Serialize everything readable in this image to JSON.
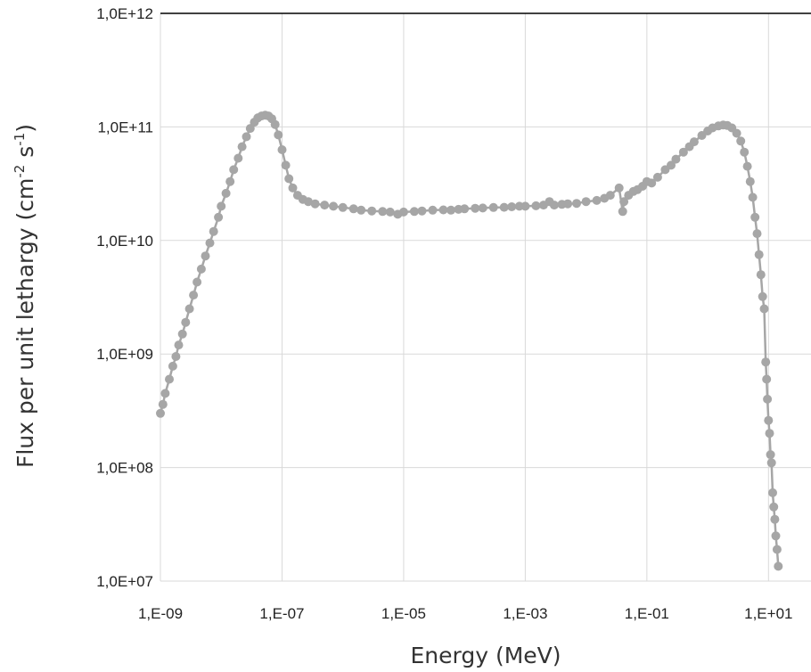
{
  "chart_data": {
    "type": "scatter",
    "title": "",
    "xlabel": "Energy (MeV)",
    "ylabel": {
      "text_before": "Flux per unit lethargy (cm",
      "sup1": "-2",
      "text_mid": " s",
      "sup2": "-1",
      "text_after": ")"
    },
    "x_scale": "log",
    "y_scale": "log",
    "xlim": [
      1e-09,
      50
    ],
    "ylim": [
      10000000.0,
      1000000000000.0
    ],
    "x_ticks": [
      {
        "value": 1e-09,
        "label": "1,E-09"
      },
      {
        "value": 1e-07,
        "label": "1,E-07"
      },
      {
        "value": 1e-05,
        "label": "1,E-05"
      },
      {
        "value": 0.001,
        "label": "1,E-03"
      },
      {
        "value": 0.1,
        "label": "1,E-01"
      },
      {
        "value": 10,
        "label": "1,E+01"
      }
    ],
    "y_ticks": [
      {
        "value": 10000000.0,
        "label": "1,0E+07"
      },
      {
        "value": 100000000.0,
        "label": "1,0E+08"
      },
      {
        "value": 1000000000.0,
        "label": "1,0E+09"
      },
      {
        "value": 10000000000.0,
        "label": "1,0E+10"
      },
      {
        "value": 100000000000.0,
        "label": "1,0E+11"
      },
      {
        "value": 1000000000000.0,
        "label": "1,0E+12"
      }
    ],
    "grid": true,
    "legend": "none",
    "series": [
      {
        "color": "#a6a6a6",
        "points": [
          [
            1e-09,
            300000000.0
          ],
          [
            1.1e-09,
            360000000.0
          ],
          [
            1.2e-09,
            450000000.0
          ],
          [
            1.4e-09,
            600000000.0
          ],
          [
            1.6e-09,
            780000000.0
          ],
          [
            1.8e-09,
            950000000.0
          ],
          [
            2e-09,
            1200000000.0
          ],
          [
            2.3e-09,
            1500000000.0
          ],
          [
            2.6e-09,
            1900000000.0
          ],
          [
            3e-09,
            2500000000.0
          ],
          [
            3.5e-09,
            3300000000.0
          ],
          [
            4e-09,
            4300000000.0
          ],
          [
            4.7e-09,
            5600000000.0
          ],
          [
            5.5e-09,
            7300000000.0
          ],
          [
            6.5e-09,
            9500000000.0
          ],
          [
            7.5e-09,
            12000000000.0
          ],
          [
            9e-09,
            16000000000.0
          ],
          [
            1e-08,
            20000000000.0
          ],
          [
            1.2e-08,
            26000000000.0
          ],
          [
            1.4e-08,
            33000000000.0
          ],
          [
            1.6e-08,
            42000000000.0
          ],
          [
            1.9e-08,
            53000000000.0
          ],
          [
            2.2e-08,
            67000000000.0
          ],
          [
            2.6e-08,
            82000000000.0
          ],
          [
            3e-08,
            97000000000.0
          ],
          [
            3.5e-08,
            110000000000.0
          ],
          [
            4e-08,
            120000000000.0
          ],
          [
            4.6e-08,
            125000000000.0
          ],
          [
            5.3e-08,
            127000000000.0
          ],
          [
            6e-08,
            125000000000.0
          ],
          [
            6.8e-08,
            118000000000.0
          ],
          [
            7.7e-08,
            105000000000.0
          ],
          [
            8.7e-08,
            85000000000.0
          ],
          [
            1e-07,
            63000000000.0
          ],
          [
            1.15e-07,
            46000000000.0
          ],
          [
            1.3e-07,
            35000000000.0
          ],
          [
            1.5e-07,
            29000000000.0
          ],
          [
            1.8e-07,
            25000000000.0
          ],
          [
            2.2e-07,
            23000000000.0
          ],
          [
            2.7e-07,
            22000000000.0
          ],
          [
            3.5e-07,
            21000000000.0
          ],
          [
            5e-07,
            20500000000.0
          ],
          [
            7e-07,
            20000000000.0
          ],
          [
            1e-06,
            19500000000.0
          ],
          [
            1.5e-06,
            19000000000.0
          ],
          [
            2e-06,
            18500000000.0
          ],
          [
            3e-06,
            18200000000.0
          ],
          [
            4.5e-06,
            18000000000.0
          ],
          [
            6e-06,
            17800000000.0
          ],
          [
            8e-06,
            17000000000.0
          ],
          [
            1e-05,
            17800000000.0
          ],
          [
            1.5e-05,
            18000000000.0
          ],
          [
            2e-05,
            18200000000.0
          ],
          [
            3e-05,
            18500000000.0
          ],
          [
            4.5e-05,
            18600000000.0
          ],
          [
            6e-05,
            18500000000.0
          ],
          [
            8e-05,
            18800000000.0
          ],
          [
            0.0001,
            19000000000.0
          ],
          [
            0.00015,
            19200000000.0
          ],
          [
            0.0002,
            19300000000.0
          ],
          [
            0.0003,
            19500000000.0
          ],
          [
            0.00045,
            19600000000.0
          ],
          [
            0.0006,
            19800000000.0
          ],
          [
            0.0008,
            20000000000.0
          ],
          [
            0.001,
            20000000000.0
          ],
          [
            0.0015,
            20200000000.0
          ],
          [
            0.002,
            20500000000.0
          ],
          [
            0.0025,
            22000000000.0
          ],
          [
            0.003,
            20500000000.0
          ],
          [
            0.004,
            20800000000.0
          ],
          [
            0.005,
            21000000000.0
          ],
          [
            0.007,
            21200000000.0
          ],
          [
            0.01,
            22000000000.0
          ],
          [
            0.015,
            22500000000.0
          ],
          [
            0.02,
            23500000000.0
          ],
          [
            0.025,
            25000000000.0
          ],
          [
            0.035,
            29000000000.0
          ],
          [
            0.04,
            18000000000.0
          ],
          [
            0.042,
            22000000000.0
          ],
          [
            0.05,
            25000000000.0
          ],
          [
            0.06,
            27000000000.0
          ],
          [
            0.07,
            28000000000.0
          ],
          [
            0.085,
            30000000000.0
          ],
          [
            0.1,
            33000000000.0
          ],
          [
            0.12,
            32000000000.0
          ],
          [
            0.15,
            36000000000.0
          ],
          [
            0.2,
            42000000000.0
          ],
          [
            0.25,
            46000000000.0
          ],
          [
            0.3,
            52000000000.0
          ],
          [
            0.4,
            60000000000.0
          ],
          [
            0.5,
            67000000000.0
          ],
          [
            0.6,
            74000000000.0
          ],
          [
            0.8,
            84000000000.0
          ],
          [
            1.0,
            92000000000.0
          ],
          [
            1.2,
            98000000000.0
          ],
          [
            1.5,
            102000000000.0
          ],
          [
            1.8,
            104000000000.0
          ],
          [
            2.1,
            103000000000.0
          ],
          [
            2.5,
            98000000000.0
          ],
          [
            3.0,
            88000000000.0
          ],
          [
            3.5,
            75000000000.0
          ],
          [
            4.0,
            60000000000.0
          ],
          [
            4.5,
            45000000000.0
          ],
          [
            5.0,
            33000000000.0
          ],
          [
            5.5,
            24000000000.0
          ],
          [
            6.0,
            16000000000.0
          ],
          [
            6.5,
            11500000000.0
          ],
          [
            7.0,
            7500000000.0
          ],
          [
            7.5,
            5000000000.0
          ],
          [
            8.0,
            3200000000.0
          ],
          [
            8.5,
            2500000000.0
          ],
          [
            9.0,
            850000000.0
          ],
          [
            9.3,
            600000000.0
          ],
          [
            9.6,
            400000000.0
          ],
          [
            10.0,
            260000000.0
          ],
          [
            10.4,
            200000000.0
          ],
          [
            10.8,
            130000000.0
          ],
          [
            11.2,
            110000000.0
          ],
          [
            11.7,
            60000000.0
          ],
          [
            12.2,
            45000000.0
          ],
          [
            12.7,
            35000000.0
          ],
          [
            13.2,
            25000000.0
          ],
          [
            13.8,
            19000000.0
          ],
          [
            14.5,
            13500000.0
          ]
        ]
      }
    ]
  }
}
